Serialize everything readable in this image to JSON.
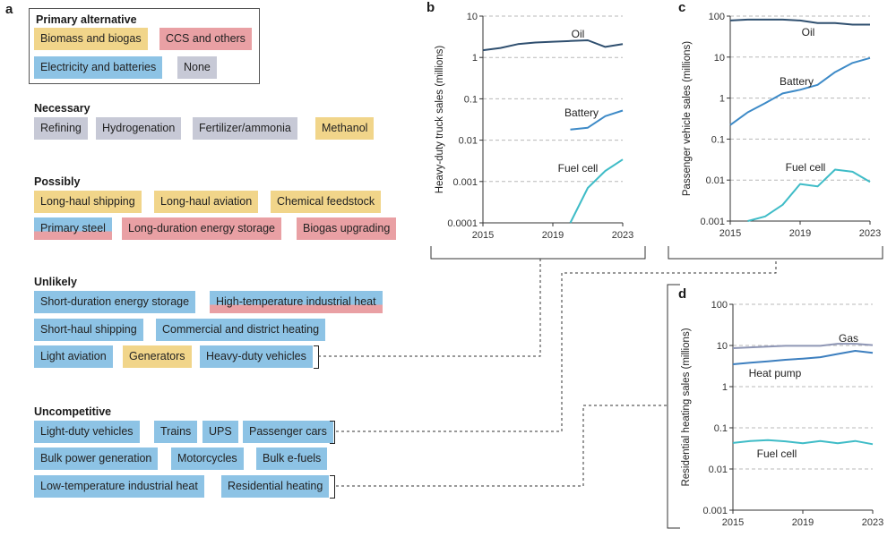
{
  "panel_a": {
    "letter": "a",
    "legend": {
      "title": "Primary alternative",
      "items": [
        "Biomass and biogas",
        "CCS and others",
        "Electricity and batteries",
        "None"
      ]
    },
    "categories": [
      {
        "title": "Necessary",
        "items": [
          "Refining",
          "Hydrogenation",
          "Fertilizer/ammonia",
          "Methanol"
        ]
      },
      {
        "title": "Possibly",
        "items": [
          "Long-haul shipping",
          "Long-haul aviation",
          "Chemical feedstock",
          "Primary steel",
          "Long-duration energy storage",
          "Biogas upgrading"
        ]
      },
      {
        "title": "Unlikely",
        "items": [
          "Short-duration energy storage",
          "High-temperature industrial heat",
          "Short-haul shipping",
          "Commercial and district heating",
          "Light aviation",
          "Generators",
          "Heavy-duty vehicles"
        ]
      },
      {
        "title": "Uncompetitive",
        "items": [
          "Light-duty vehicles",
          "Trains",
          "UPS",
          "Passenger cars",
          "Bulk power generation",
          "Motorcycles",
          "Bulk e-fuels",
          "Low-temperature industrial heat",
          "Residential heating"
        ]
      }
    ]
  },
  "colors": {
    "biomass": "#f1d58a",
    "ccs": "#e9a0a4",
    "electricity": "#8dc3e5",
    "none": "#c7c9d6",
    "oil": "#2f4f6f",
    "battery": "#3d8ac7",
    "fuel_cell": "#3fbcc7",
    "gas": "#8e96b5",
    "heat_pump": "#3d7fbf"
  },
  "chart_data": [
    {
      "panel": "b",
      "type": "line",
      "ylabel": "Heavy-duty truck sales (millions)",
      "yscale": "log",
      "ylim": [
        0.0001,
        10
      ],
      "xlim": [
        2015,
        2023
      ],
      "xticks": [
        "2015",
        "2019",
        "2023"
      ],
      "yticks": [
        "10",
        "1",
        "0.1",
        "0.01",
        "0.001",
        "0.0001"
      ],
      "grid": "dashed at decades",
      "series": [
        {
          "name": "Oil",
          "x": [
            2015,
            2016,
            2017,
            2018,
            2019,
            2020,
            2021,
            2022,
            2023
          ],
          "y": [
            1.5,
            1.7,
            2.1,
            2.3,
            2.4,
            2.5,
            2.6,
            1.8,
            2.1
          ]
        },
        {
          "name": "Battery",
          "x": [
            2020,
            2021,
            2022,
            2023
          ],
          "y": [
            0.018,
            0.02,
            0.038,
            0.052
          ]
        },
        {
          "name": "Fuel cell",
          "x": [
            2020,
            2021,
            2022,
            2023
          ],
          "y": [
            0.0001,
            0.0007,
            0.0018,
            0.0034
          ]
        }
      ]
    },
    {
      "panel": "c",
      "type": "line",
      "ylabel": "Passenger vehicle sales (millions)",
      "yscale": "log",
      "ylim": [
        0.001,
        100
      ],
      "xlim": [
        2015,
        2023
      ],
      "xticks": [
        "2015",
        "2019",
        "2023"
      ],
      "yticks": [
        "100",
        "10",
        "1",
        "0.1",
        "0.01",
        "0.001"
      ],
      "grid": "dashed at decades",
      "series": [
        {
          "name": "Oil",
          "x": [
            2015,
            2016,
            2017,
            2018,
            2019,
            2020,
            2021,
            2022,
            2023
          ],
          "y": [
            78,
            82,
            82,
            82,
            78,
            68,
            68,
            62,
            62
          ]
        },
        {
          "name": "Battery",
          "x": [
            2015,
            2016,
            2017,
            2018,
            2019,
            2020,
            2021,
            2022,
            2023
          ],
          "y": [
            0.22,
            0.45,
            0.75,
            1.3,
            1.6,
            2.1,
            4.3,
            7.2,
            9.5
          ]
        },
        {
          "name": "Fuel cell",
          "x": [
            2016,
            2017,
            2018,
            2019,
            2020,
            2021,
            2022,
            2023
          ],
          "y": [
            0.001,
            0.0013,
            0.0025,
            0.008,
            0.007,
            0.018,
            0.016,
            0.009
          ]
        }
      ]
    },
    {
      "panel": "d",
      "type": "line",
      "ylabel": "Residential heating sales (millions)",
      "yscale": "log",
      "ylim": [
        0.001,
        100
      ],
      "xlim": [
        2015,
        2023
      ],
      "xticks": [
        "2015",
        "2019",
        "2023"
      ],
      "yticks": [
        "100",
        "10",
        "1",
        "0.1",
        "0.01",
        "0.001"
      ],
      "grid": "dashed at decades",
      "series": [
        {
          "name": "Gas",
          "x": [
            2015,
            2016,
            2017,
            2018,
            2019,
            2020,
            2021,
            2022,
            2023
          ],
          "y": [
            8.6,
            9.0,
            9.4,
            9.8,
            9.8,
            9.8,
            11.0,
            11.0,
            10.2
          ]
        },
        {
          "name": "Heat pump",
          "x": [
            2015,
            2016,
            2017,
            2018,
            2019,
            2020,
            2021,
            2022,
            2023
          ],
          "y": [
            3.5,
            3.8,
            4.1,
            4.5,
            4.8,
            5.2,
            6.2,
            7.4,
            6.6
          ]
        },
        {
          "name": "Fuel cell",
          "x": [
            2015,
            2016,
            2017,
            2018,
            2019,
            2020,
            2021,
            2022,
            2023
          ],
          "y": [
            0.043,
            0.048,
            0.05,
            0.047,
            0.042,
            0.048,
            0.042,
            0.048,
            0.04
          ]
        }
      ]
    }
  ]
}
